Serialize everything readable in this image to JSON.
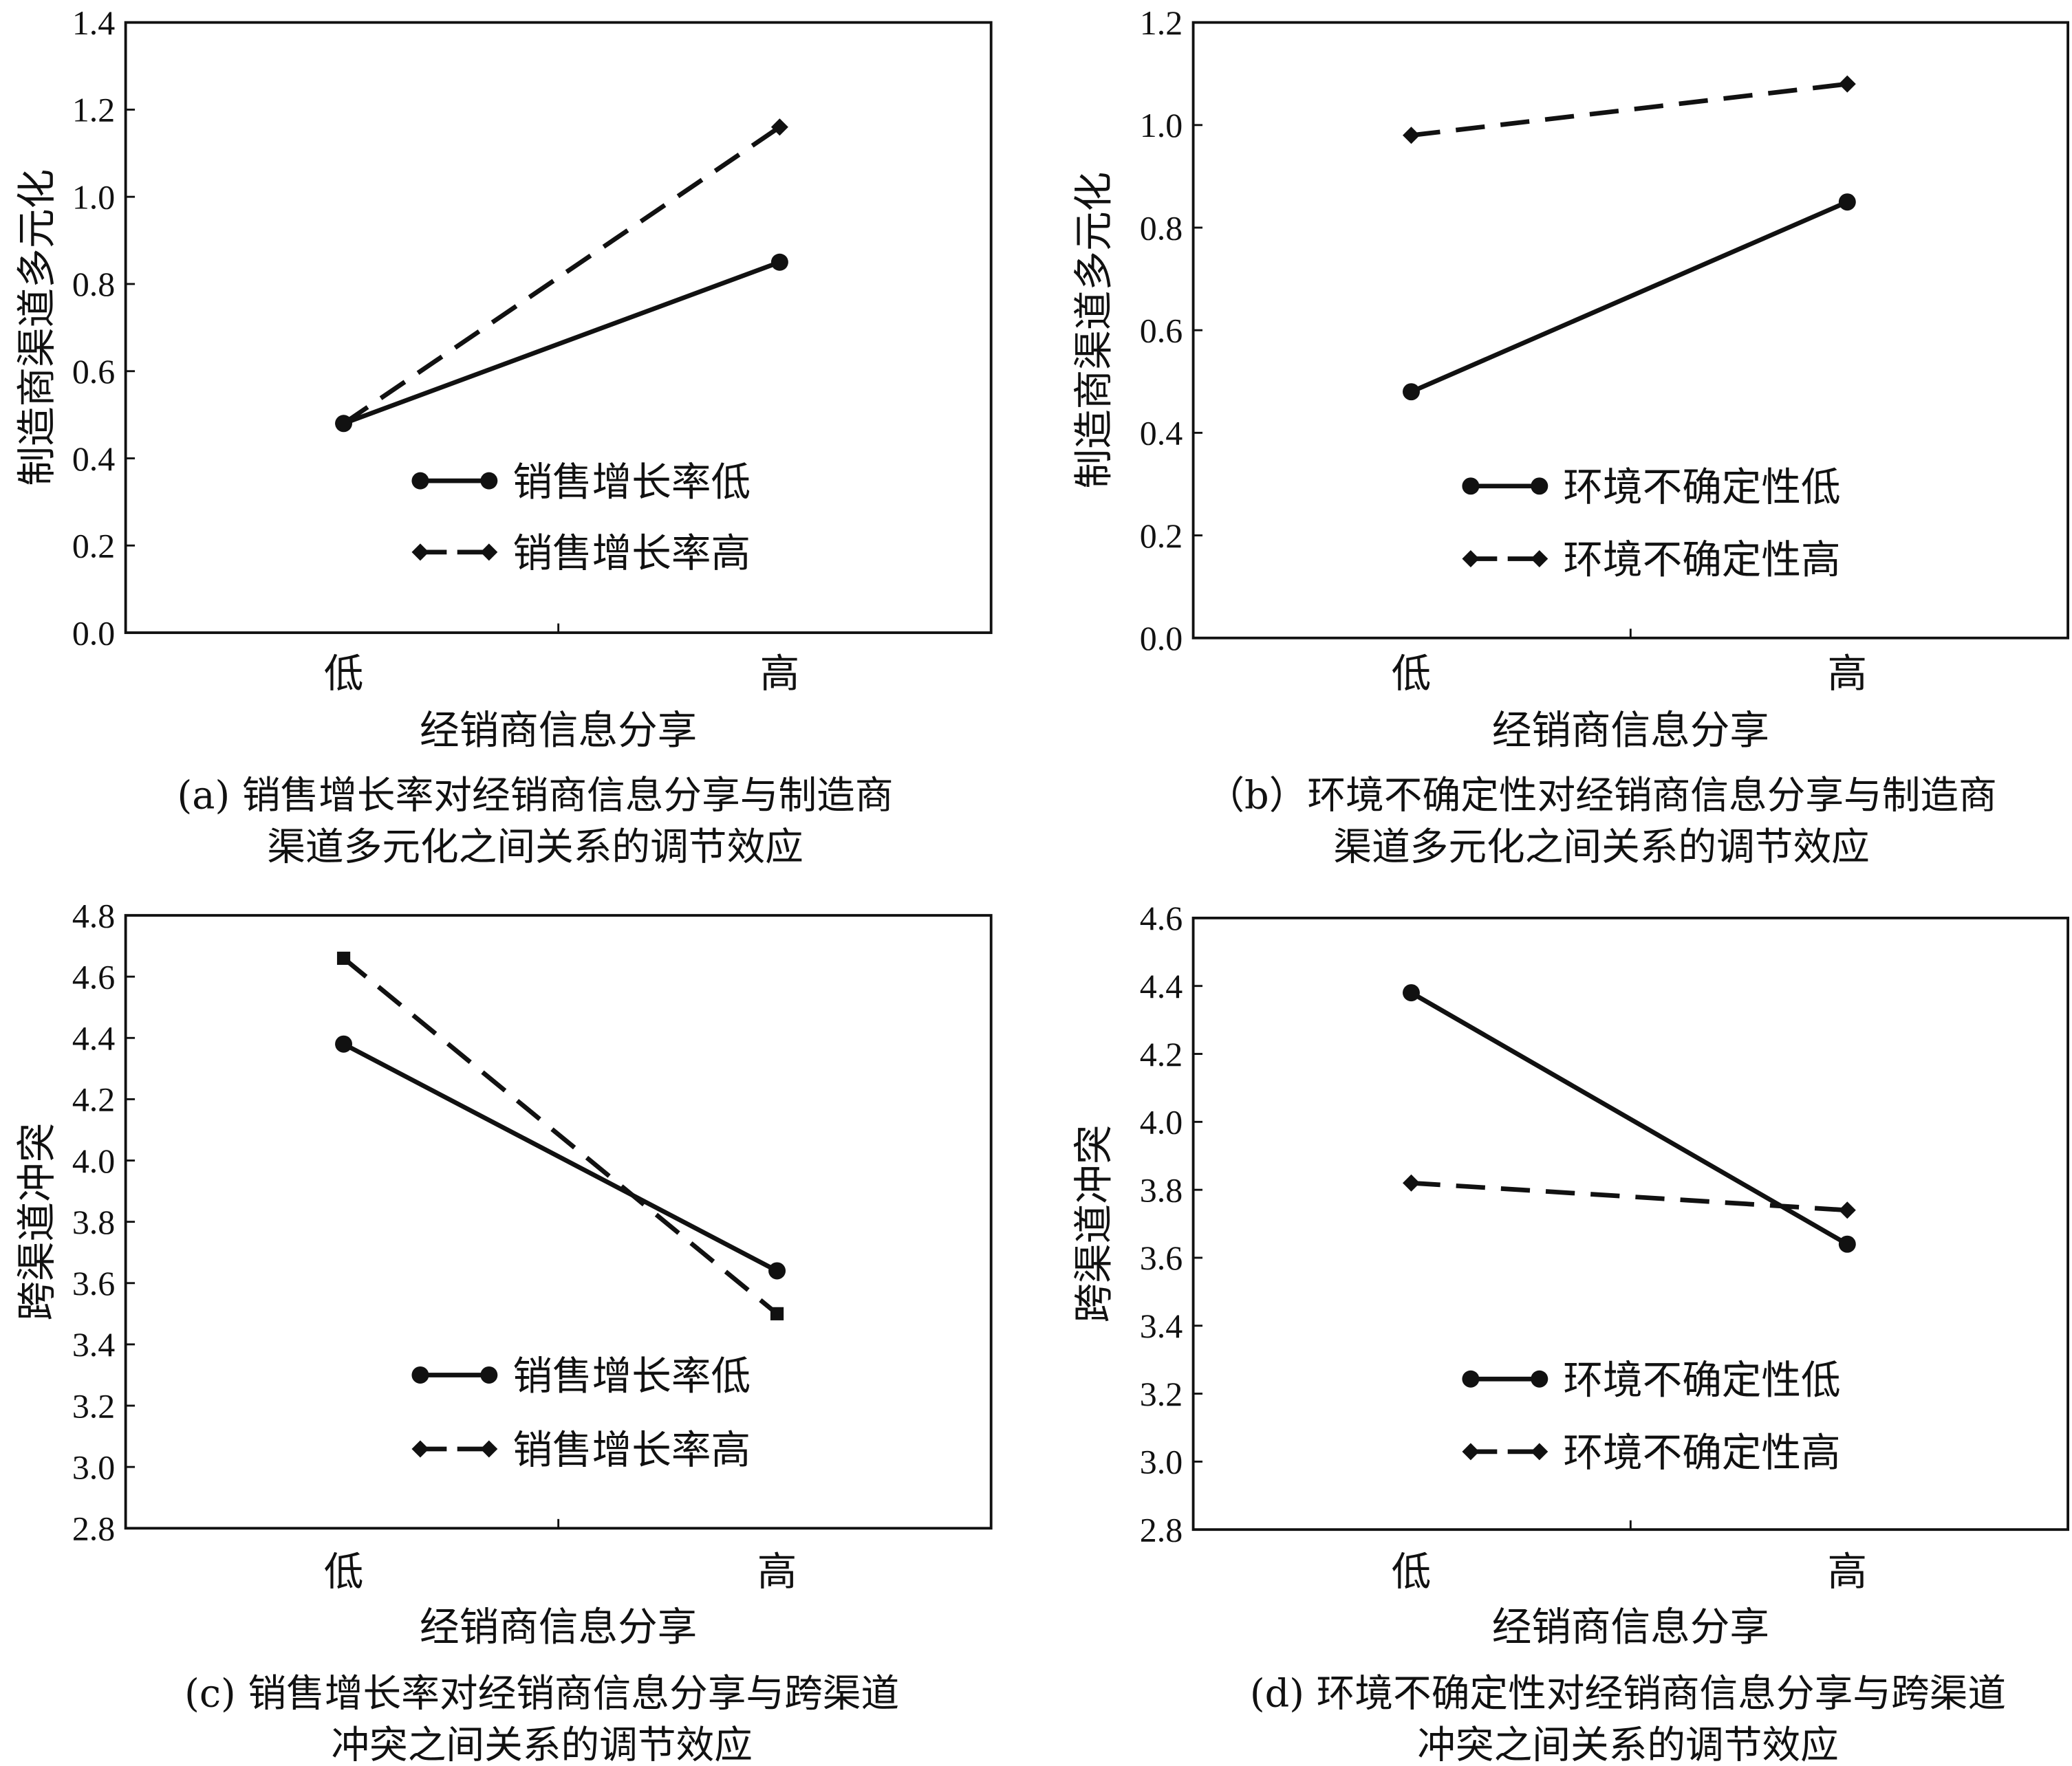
{
  "chart_data": [
    {
      "type": "line",
      "id": "a",
      "categories": [
        "低",
        "高"
      ],
      "xlabel": "经销商信息分享",
      "ylabel": "制造商渠道多元化",
      "ylim": [
        0,
        1.4
      ],
      "yticks": [
        "0.0",
        "0.2",
        "0.4",
        "0.6",
        "0.8",
        "1.0",
        "1.2",
        "1.4"
      ],
      "caption": [
        "(a) 销售增长率对经销商信息分享与制造商",
        "渠道多元化之间关系的调节效应"
      ],
      "legend_position": "lower-center",
      "series": [
        {
          "name": "销售增长率低",
          "style": "solid",
          "marker": "circle",
          "values": [
            0.48,
            0.85
          ]
        },
        {
          "name": "销售增长率高",
          "style": "dashed",
          "marker": "diamond",
          "values": [
            0.48,
            1.16
          ]
        }
      ]
    },
    {
      "type": "line",
      "id": "b",
      "categories": [
        "低",
        "高"
      ],
      "xlabel": "经销商信息分享",
      "ylabel": "制造商渠道多元化",
      "ylim": [
        0,
        1.2
      ],
      "yticks": [
        "0.0",
        "0.2",
        "0.4",
        "0.6",
        "0.8",
        "1.0",
        "1.2"
      ],
      "caption": [
        "（b）环境不确定性对经销商信息分享与制造商",
        "渠道多元化之间关系的调节效应"
      ],
      "legend_position": "lower-right",
      "series": [
        {
          "name": "环境不确定性低",
          "style": "solid",
          "marker": "circle",
          "values": [
            0.48,
            0.85
          ]
        },
        {
          "name": "环境不确定性高",
          "style": "dashed",
          "marker": "diamond",
          "values": [
            0.98,
            1.08
          ]
        }
      ]
    },
    {
      "type": "line",
      "id": "c",
      "categories": [
        "低",
        "高"
      ],
      "xlabel": "经销商信息分享",
      "ylabel": "跨渠道冲突",
      "ylim": [
        2.8,
        4.8
      ],
      "yticks": [
        "2.8",
        "3.0",
        "3.2",
        "3.4",
        "3.6",
        "3.8",
        "4.0",
        "4.2",
        "4.4",
        "4.6",
        "4.8"
      ],
      "caption": [
        "(c) 销售增长率对经销商信息分享与跨渠道",
        "冲突之间关系的调节效应"
      ],
      "legend_position": "lower-center",
      "series": [
        {
          "name": "销售增长率低",
          "style": "solid",
          "marker": "circle",
          "values": [
            4.38,
            3.64
          ]
        },
        {
          "name": "销售增长率高",
          "style": "dashed",
          "marker": "square",
          "values": [
            4.66,
            3.5
          ]
        }
      ]
    },
    {
      "type": "line",
      "id": "d",
      "categories": [
        "低",
        "高"
      ],
      "xlabel": "经销商信息分享",
      "ylabel": "跨渠道冲突",
      "ylim": [
        2.8,
        4.6
      ],
      "yticks": [
        "2.8",
        "3.0",
        "3.2",
        "3.4",
        "3.6",
        "3.8",
        "4.0",
        "4.2",
        "4.4",
        "4.6"
      ],
      "caption": [
        "(d) 环境不确定性对经销商信息分享与跨渠道",
        "冲突之间关系的调节效应"
      ],
      "legend_position": "lower-right",
      "series": [
        {
          "name": "环境不确定性低",
          "style": "solid",
          "marker": "circle",
          "values": [
            4.38,
            3.64
          ]
        },
        {
          "name": "环境不确定性高",
          "style": "dashed",
          "marker": "diamond",
          "values": [
            3.82,
            3.74
          ]
        }
      ]
    }
  ]
}
